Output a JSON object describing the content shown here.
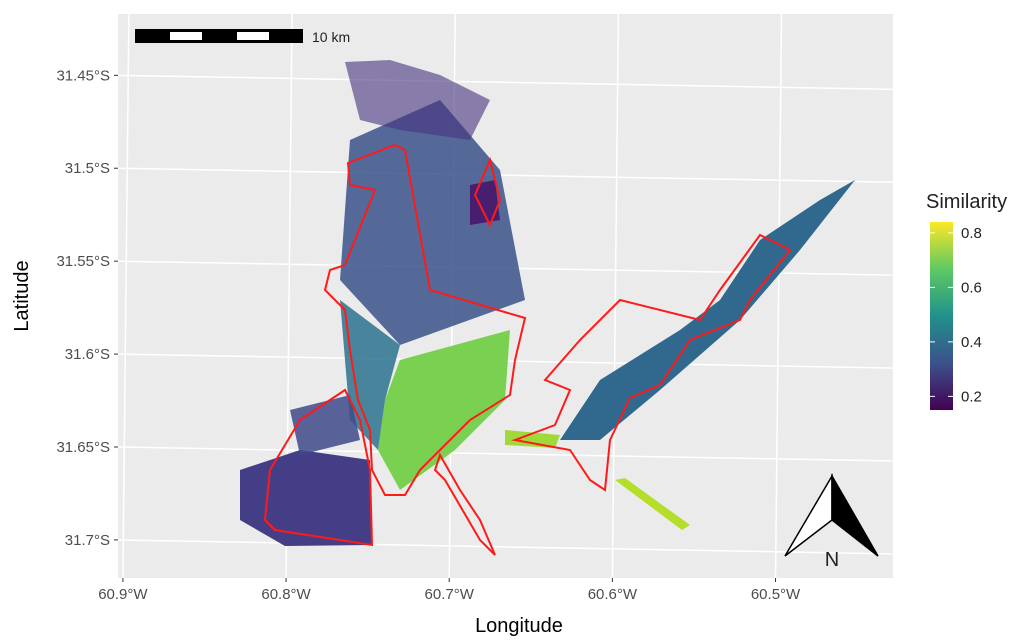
{
  "map": {
    "xlabel": "Longitude",
    "ylabel": "Latitude",
    "xlim": [
      -60.903,
      -60.428
    ],
    "ylim": [
      -31.7205,
      -31.417
    ],
    "xticks": [
      {
        "value": -60.9,
        "label": "60.9°W"
      },
      {
        "value": -60.8,
        "label": "60.8°W"
      },
      {
        "value": -60.7,
        "label": "60.7°W"
      },
      {
        "value": -60.6,
        "label": "60.6°W"
      },
      {
        "value": -60.5,
        "label": "60.5°W"
      }
    ],
    "yticks": [
      {
        "value": -31.45,
        "label": "31.45°S"
      },
      {
        "value": -31.5,
        "label": "31.5°S"
      },
      {
        "value": -31.55,
        "label": "31.55°S"
      },
      {
        "value": -31.6,
        "label": "31.6°S"
      },
      {
        "value": -31.65,
        "label": "31.65°S"
      },
      {
        "value": -31.7,
        "label": "31.7°S"
      }
    ],
    "legend": {
      "title": "Similarity",
      "lim": [
        0.15,
        0.84
      ],
      "ticks": [
        0.8,
        0.6,
        0.4,
        0.2
      ]
    },
    "scale_bar": "10 km",
    "north": "N"
  }
}
